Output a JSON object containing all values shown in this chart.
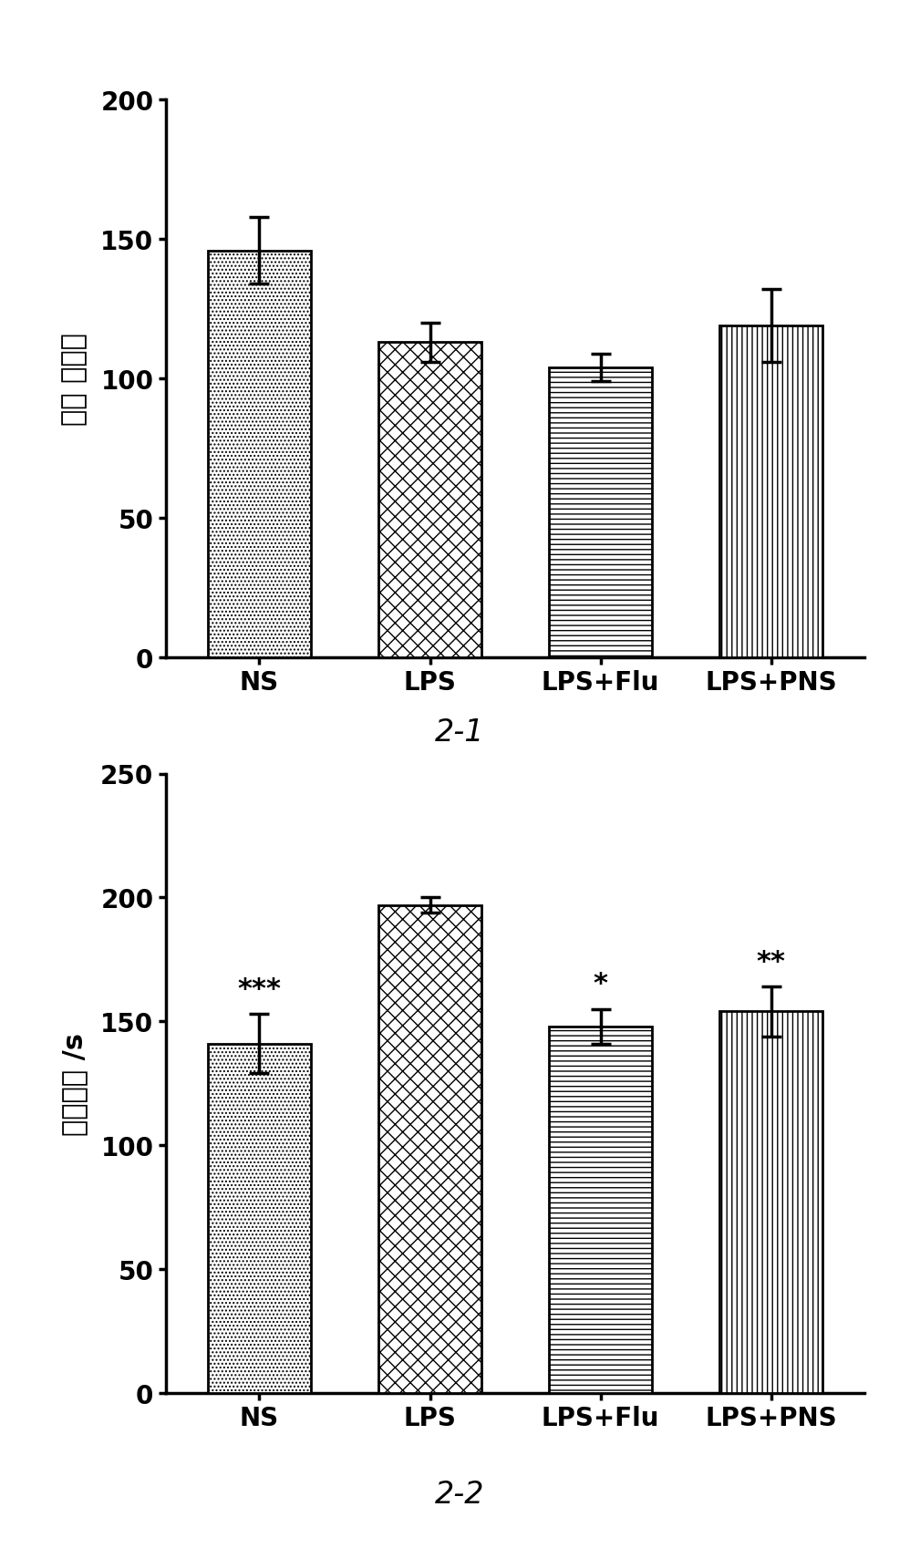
{
  "chart1": {
    "title": "2-1",
    "ylabel": "穿越 格子数",
    "categories": [
      "NS",
      "LPS",
      "LPS+Flu",
      "LPS+PNS"
    ],
    "values": [
      146,
      113,
      104,
      119
    ],
    "errors": [
      12,
      7,
      5,
      13
    ],
    "ylim": [
      0,
      200
    ],
    "yticks": [
      0,
      50,
      100,
      150,
      200
    ],
    "annotations": [
      "",
      "",
      "",
      ""
    ]
  },
  "chart2": {
    "title": "2-2",
    "ylabel": "不动时间 /s",
    "categories": [
      "NS",
      "LPS",
      "LPS+Flu",
      "LPS+PNS"
    ],
    "values": [
      141,
      197,
      148,
      154
    ],
    "errors": [
      12,
      3,
      7,
      10
    ],
    "ylim": [
      0,
      250
    ],
    "yticks": [
      0,
      50,
      100,
      150,
      200,
      250
    ],
    "annotations": [
      "***",
      "",
      "*",
      "**"
    ]
  },
  "bar_width": 0.6,
  "figure_bg": "#ffffff",
  "bar_edgecolor": "#000000",
  "bar_linewidth": 2.0,
  "axis_linewidth": 2.5,
  "tick_fontsize": 20,
  "label_fontsize": 22,
  "title_fontsize": 24,
  "annotation_fontsize": 22,
  "hatch_patterns": [
    "....",
    "xx",
    "---",
    "|||"
  ]
}
